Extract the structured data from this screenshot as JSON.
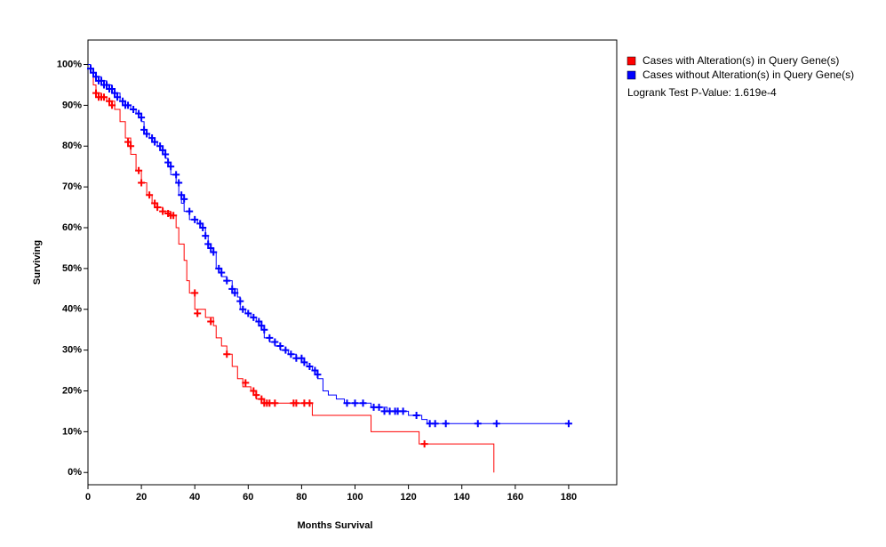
{
  "chart_data": {
    "type": "line",
    "step": true,
    "x_label": "Months Survival",
    "y_label": "Surviving",
    "annotation": "Logrank Test P-Value: 1.619e-4",
    "xlim": [
      0,
      198
    ],
    "ylim": [
      -3,
      106
    ],
    "xticks": [
      0,
      20,
      40,
      60,
      80,
      100,
      120,
      140,
      160,
      180
    ],
    "yticks": [
      {
        "value": 0,
        "label": "0%"
      },
      {
        "value": 10,
        "label": "10%"
      },
      {
        "value": 20,
        "label": "20%"
      },
      {
        "value": 30,
        "label": "30%"
      },
      {
        "value": 40,
        "label": "40%"
      },
      {
        "value": 50,
        "label": "50%"
      },
      {
        "value": 60,
        "label": "60%"
      },
      {
        "value": 70,
        "label": "70%"
      },
      {
        "value": 80,
        "label": "80%"
      },
      {
        "value": 90,
        "label": "90%"
      },
      {
        "value": 100,
        "label": "100%"
      }
    ],
    "series": [
      {
        "name": "Cases with Alteration(s) in Query Gene(s)",
        "color": "#ff0000",
        "x": [
          0,
          1,
          2,
          3,
          5,
          7,
          10,
          12,
          14,
          16,
          18,
          20,
          22,
          24,
          26,
          28,
          31,
          33,
          34,
          36,
          37,
          38,
          40,
          44,
          47,
          48,
          50,
          52,
          54,
          56,
          58,
          61,
          63,
          65,
          84,
          106,
          124,
          152
        ],
        "values": [
          100,
          98,
          95,
          93,
          92,
          91,
          89,
          86,
          82,
          78,
          74,
          71,
          68,
          66,
          65,
          64,
          63,
          60,
          56,
          52,
          47,
          44,
          40,
          38,
          36,
          33,
          31,
          29,
          26,
          23,
          21,
          20,
          18,
          17,
          14,
          10,
          7,
          0
        ],
        "censor_x": [
          3,
          4,
          5,
          6,
          8,
          9,
          15,
          16,
          19,
          20,
          23,
          25,
          26,
          28,
          30,
          31,
          32,
          40,
          41,
          46,
          52,
          59,
          62,
          63,
          65,
          66,
          67,
          68,
          70,
          77,
          78,
          81,
          83,
          126
        ],
        "censor_values": [
          93,
          92,
          92,
          92,
          91,
          90,
          81,
          80,
          74,
          71,
          68,
          66,
          65,
          64,
          63.5,
          63,
          63,
          44,
          39,
          37,
          29,
          22,
          20,
          19,
          18,
          17,
          17,
          17,
          17,
          17,
          17,
          17,
          17,
          7
        ]
      },
      {
        "name": "Cases without Alteration(s) in Query Gene(s)",
        "color": "#0000ff",
        "x": [
          0,
          1,
          2,
          3,
          5,
          7,
          9,
          10,
          12,
          14,
          16,
          18,
          19,
          20,
          21,
          22,
          23,
          25,
          26,
          27,
          28,
          29,
          30,
          31,
          33,
          34,
          35,
          36,
          38,
          41,
          43,
          44,
          45,
          46,
          48,
          50,
          52,
          54,
          56,
          57,
          59,
          61,
          63,
          65,
          66,
          68,
          70,
          72,
          75,
          78,
          80,
          82,
          84,
          86,
          88,
          90,
          93,
          96,
          106,
          112,
          120,
          125,
          127,
          180
        ],
        "values": [
          100,
          99,
          98,
          97,
          96,
          95,
          94,
          93,
          91,
          90,
          89,
          88,
          87,
          86,
          84,
          83,
          82,
          81,
          80,
          79,
          78,
          77,
          75,
          73,
          71,
          68,
          66,
          64,
          62,
          61,
          60,
          58,
          56,
          54,
          50,
          48,
          47,
          45,
          43,
          40,
          39,
          38,
          37,
          35,
          33,
          32,
          31,
          30,
          29,
          28,
          27,
          26,
          25,
          23,
          20,
          19,
          18,
          17,
          16,
          15,
          14,
          13,
          12,
          12
        ],
        "censor_x": [
          1,
          2,
          3,
          4,
          5,
          6,
          7,
          8,
          9,
          10,
          11,
          13,
          14,
          15,
          17,
          19,
          20,
          21,
          22,
          24,
          25,
          27,
          28,
          29,
          30,
          31,
          33,
          34,
          35,
          36,
          38,
          40,
          42,
          43,
          44,
          45,
          46,
          47,
          49,
          50,
          52,
          54,
          55,
          57,
          58,
          60,
          62,
          64,
          65,
          66,
          68,
          70,
          72,
          74,
          76,
          78,
          80,
          81,
          83,
          85,
          86,
          97,
          100,
          103,
          107,
          109,
          111,
          113,
          115,
          116,
          118,
          123,
          128,
          130,
          134,
          146,
          153,
          180
        ],
        "censor_values": [
          99,
          98,
          97,
          96,
          96,
          95,
          95,
          94,
          94,
          93,
          92,
          91,
          90,
          90,
          89,
          88,
          87,
          84,
          83,
          82,
          81,
          80,
          79,
          78,
          76,
          75,
          73,
          71,
          68,
          67,
          64,
          62,
          61,
          60,
          58,
          56,
          55,
          54,
          50,
          49,
          47,
          45,
          44,
          42,
          40,
          39,
          38,
          37,
          36,
          35,
          33,
          32,
          31,
          30,
          29,
          28,
          28,
          27,
          26,
          25,
          24,
          17,
          17,
          17,
          16,
          16,
          15,
          15,
          15,
          15,
          15,
          14,
          12,
          12,
          12,
          12,
          12,
          12
        ]
      }
    ]
  }
}
